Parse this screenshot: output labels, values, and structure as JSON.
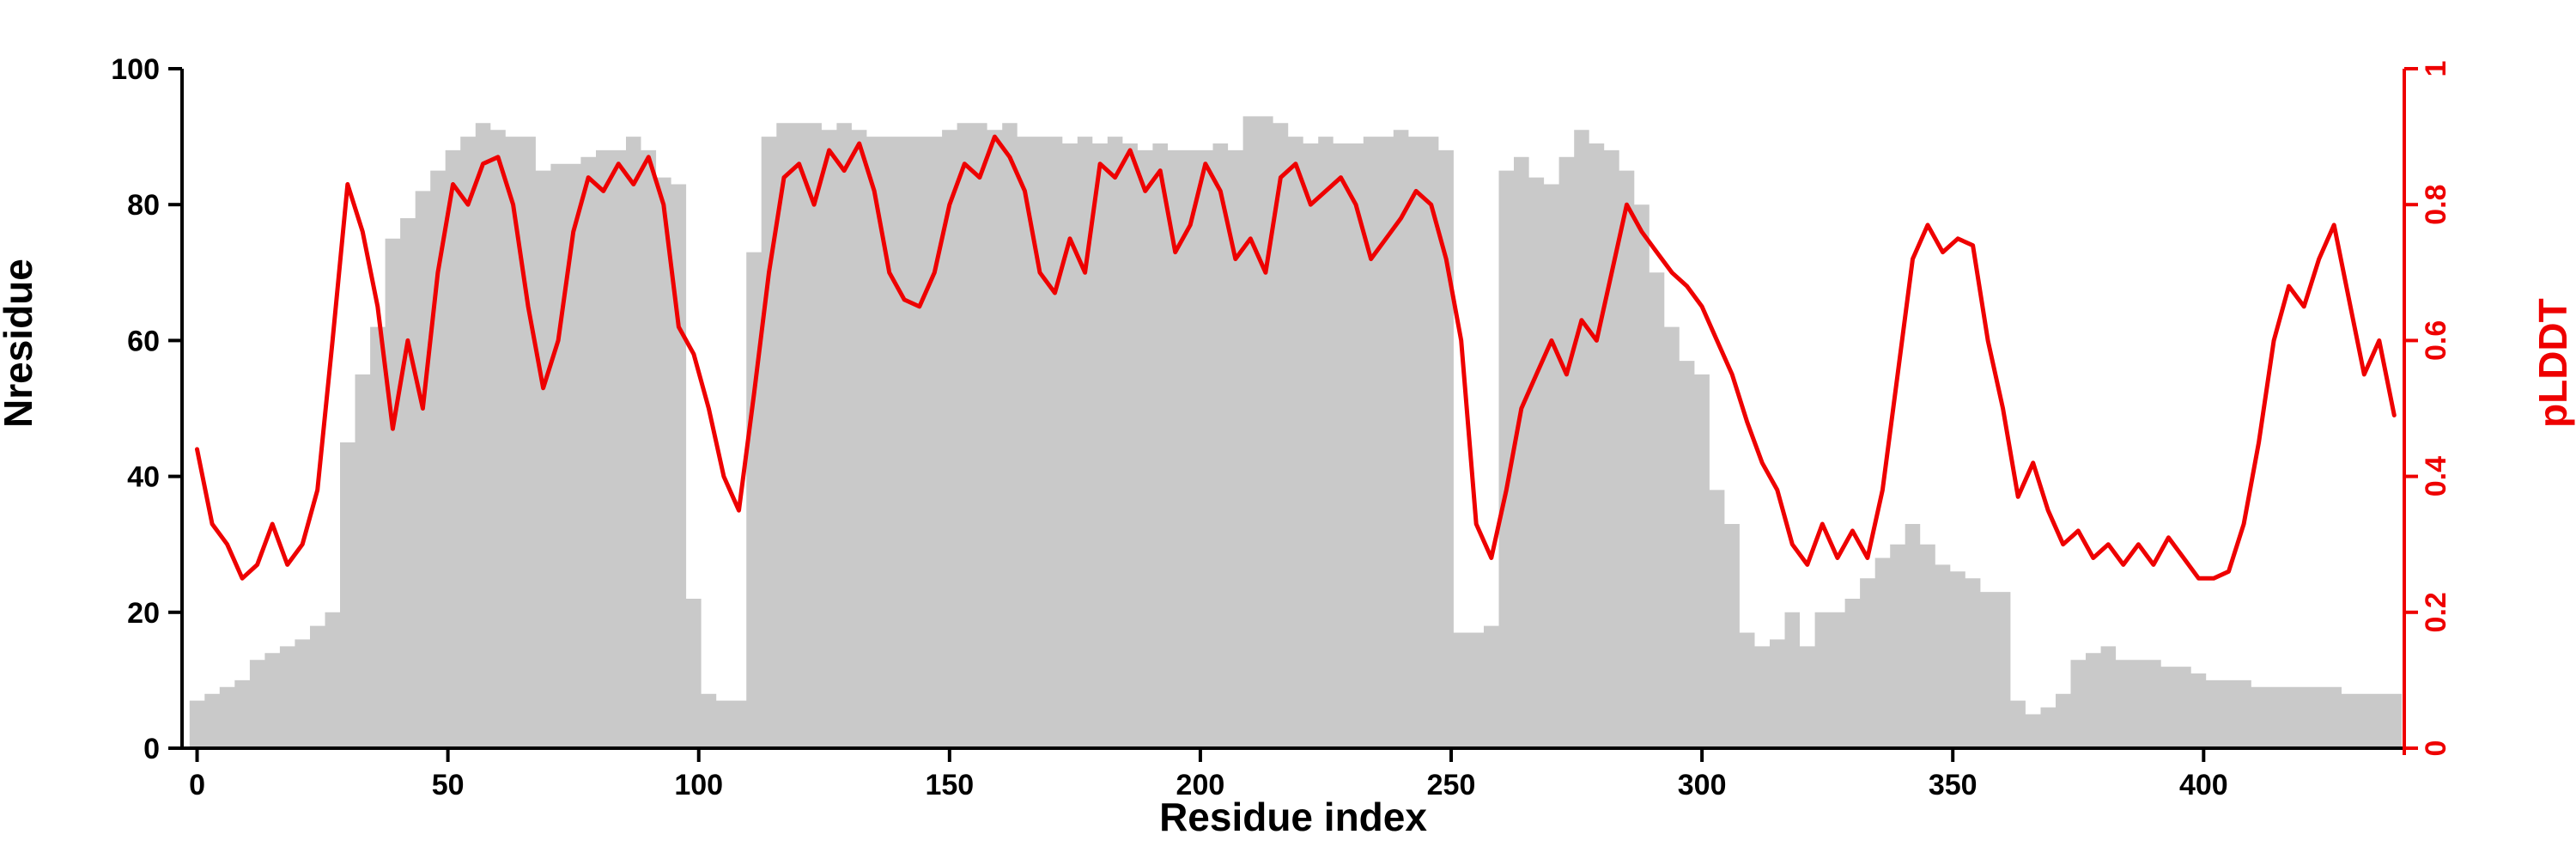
{
  "chart_data": {
    "type": "line",
    "title": "",
    "xlabel": "Residue index",
    "ylabel_left": "Nresidue",
    "ylabel_right": "pLDDT",
    "xlim": [
      -3,
      440
    ],
    "ylim_left": [
      0,
      100
    ],
    "ylim_right": [
      0,
      1
    ],
    "grid": false,
    "legend": "none",
    "x_ticks": [
      0,
      50,
      100,
      150,
      200,
      250,
      300,
      350,
      400
    ],
    "y_ticks_left": [
      0,
      20,
      40,
      60,
      80,
      100
    ],
    "y_ticks_right": [
      "0",
      "0.2",
      "0.4",
      "0.6",
      "0.8",
      "1"
    ],
    "y_ticks_right_values": [
      0,
      0.2,
      0.4,
      0.6,
      0.8,
      1
    ],
    "colors": {
      "bars": "#c9c9c9",
      "line": "#ee0000",
      "axis_left": "#000000",
      "axis_right": "#ee0000"
    },
    "x": [
      0,
      3,
      6,
      9,
      12,
      15,
      18,
      21,
      24,
      27,
      30,
      33,
      36,
      39,
      42,
      45,
      48,
      51,
      54,
      57,
      60,
      63,
      66,
      69,
      72,
      75,
      78,
      81,
      84,
      87,
      90,
      93,
      96,
      99,
      102,
      105,
      108,
      111,
      114,
      117,
      120,
      123,
      126,
      129,
      132,
      135,
      138,
      141,
      144,
      147,
      150,
      153,
      156,
      159,
      162,
      165,
      168,
      171,
      174,
      177,
      180,
      183,
      186,
      189,
      192,
      195,
      198,
      201,
      204,
      207,
      210,
      213,
      216,
      219,
      222,
      225,
      228,
      231,
      234,
      237,
      240,
      243,
      246,
      249,
      252,
      255,
      258,
      261,
      264,
      267,
      270,
      273,
      276,
      279,
      282,
      285,
      288,
      291,
      294,
      297,
      300,
      303,
      306,
      309,
      312,
      315,
      318,
      321,
      324,
      327,
      330,
      333,
      336,
      339,
      342,
      345,
      348,
      351,
      354,
      357,
      360,
      363,
      366,
      369,
      372,
      375,
      378,
      381,
      384,
      387,
      390,
      393,
      396,
      399,
      402,
      405,
      408,
      411,
      414,
      417,
      420,
      423,
      426,
      429,
      432,
      435,
      438
    ],
    "series": [
      {
        "name": "Nresidue",
        "style": "bar",
        "axis": "left",
        "values": [
          7,
          8,
          9,
          10,
          13,
          14,
          15,
          16,
          18,
          20,
          45,
          55,
          62,
          75,
          78,
          82,
          85,
          88,
          90,
          92,
          91,
          90,
          90,
          85,
          86,
          86,
          87,
          88,
          88,
          90,
          88,
          84,
          83,
          22,
          8,
          7,
          7,
          73,
          90,
          92,
          92,
          92,
          91,
          92,
          91,
          90,
          90,
          90,
          90,
          90,
          91,
          92,
          92,
          91,
          92,
          90,
          90,
          90,
          89,
          90,
          89,
          90,
          89,
          88,
          89,
          88,
          88,
          88,
          89,
          88,
          93,
          93,
          92,
          90,
          89,
          90,
          89,
          89,
          90,
          90,
          91,
          90,
          90,
          88,
          17,
          17,
          18,
          85,
          87,
          84,
          83,
          87,
          91,
          89,
          88,
          85,
          80,
          70,
          62,
          57,
          55,
          38,
          33,
          17,
          15,
          16,
          20,
          15,
          20,
          20,
          22,
          25,
          28,
          30,
          33,
          30,
          27,
          26,
          25,
          23,
          23,
          7,
          5,
          6,
          8,
          13,
          14,
          15,
          13,
          13,
          13,
          12,
          12,
          11,
          10,
          10,
          10,
          9,
          9,
          9,
          9,
          9,
          9,
          8,
          8,
          8,
          8
        ]
      },
      {
        "name": "pLDDT",
        "style": "line",
        "axis": "right",
        "values": [
          0.44,
          0.33,
          0.3,
          0.25,
          0.27,
          0.33,
          0.27,
          0.3,
          0.38,
          0.6,
          0.83,
          0.76,
          0.65,
          0.47,
          0.6,
          0.5,
          0.7,
          0.83,
          0.8,
          0.86,
          0.87,
          0.8,
          0.65,
          0.53,
          0.6,
          0.76,
          0.84,
          0.82,
          0.86,
          0.83,
          0.87,
          0.8,
          0.62,
          0.58,
          0.5,
          0.4,
          0.35,
          0.52,
          0.7,
          0.84,
          0.86,
          0.8,
          0.88,
          0.85,
          0.89,
          0.82,
          0.7,
          0.66,
          0.65,
          0.7,
          0.8,
          0.86,
          0.84,
          0.9,
          0.87,
          0.82,
          0.7,
          0.67,
          0.75,
          0.7,
          0.86,
          0.84,
          0.88,
          0.82,
          0.85,
          0.73,
          0.77,
          0.86,
          0.82,
          0.72,
          0.75,
          0.7,
          0.84,
          0.86,
          0.8,
          0.82,
          0.84,
          0.8,
          0.72,
          0.75,
          0.78,
          0.82,
          0.8,
          0.72,
          0.6,
          0.33,
          0.28,
          0.38,
          0.5,
          0.55,
          0.6,
          0.55,
          0.63,
          0.6,
          0.7,
          0.8,
          0.76,
          0.73,
          0.7,
          0.68,
          0.65,
          0.6,
          0.55,
          0.48,
          0.42,
          0.38,
          0.3,
          0.27,
          0.33,
          0.28,
          0.32,
          0.28,
          0.38,
          0.55,
          0.72,
          0.77,
          0.73,
          0.75,
          0.74,
          0.6,
          0.5,
          0.37,
          0.42,
          0.35,
          0.3,
          0.32,
          0.28,
          0.3,
          0.27,
          0.3,
          0.27,
          0.31,
          0.28,
          0.25,
          0.25,
          0.26,
          0.33,
          0.45,
          0.6,
          0.68,
          0.65,
          0.72,
          0.77,
          0.66,
          0.55,
          0.6,
          0.49
        ]
      }
    ]
  }
}
